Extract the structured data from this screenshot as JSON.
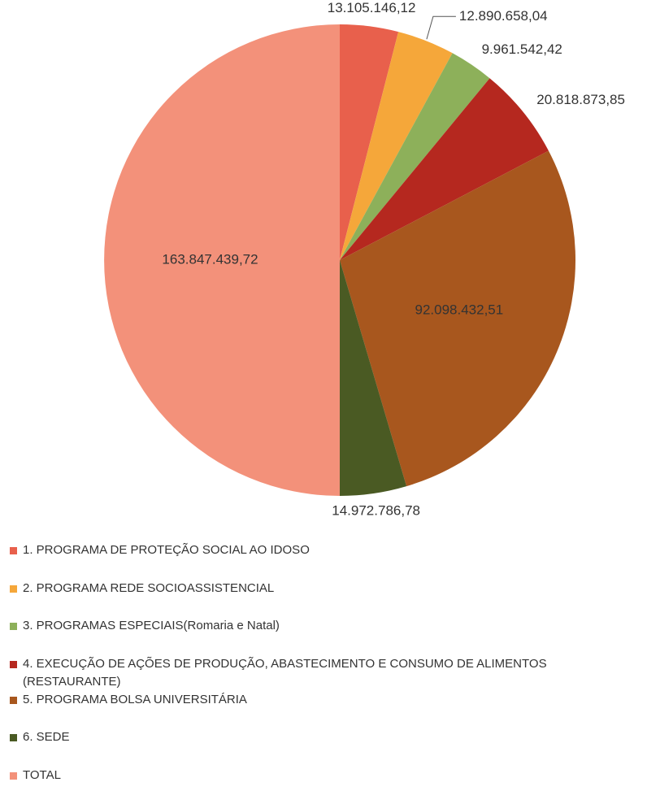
{
  "chart_data": {
    "type": "pie",
    "categories": [
      "1. PROGRAMA DE PROTEÇÃO SOCIAL AO IDOSO",
      "2. PROGRAMA REDE SOCIOASSISTENCIAL",
      "3. PROGRAMAS ESPECIAIS(Romaria e Natal)",
      "4. EXECUÇÃO DE AÇÕES DE PRODUÇÃO, ABASTECIMENTO E CONSUMO DE ALIMENTOS (RESTAURANTE)",
      "5. PROGRAMA BOLSA UNIVERSITÁRIA",
      "6. SEDE",
      "TOTAL"
    ],
    "values": [
      13105146.12,
      12890658.04,
      9961542.42,
      20818873.85,
      92098432.51,
      14972786.78,
      163847439.72
    ],
    "value_labels": [
      "13.105.146,12",
      "12.890.658,04",
      "9.961.542,42",
      "20.818.873,85",
      "92.098.432,51",
      "14.972.786,78",
      "163.847.439,72"
    ],
    "colors": [
      "#e8604c",
      "#f5a73a",
      "#8db05a",
      "#b5281f",
      "#a8571e",
      "#4a5a23",
      "#f3917a"
    ],
    "legend": "bottom"
  }
}
